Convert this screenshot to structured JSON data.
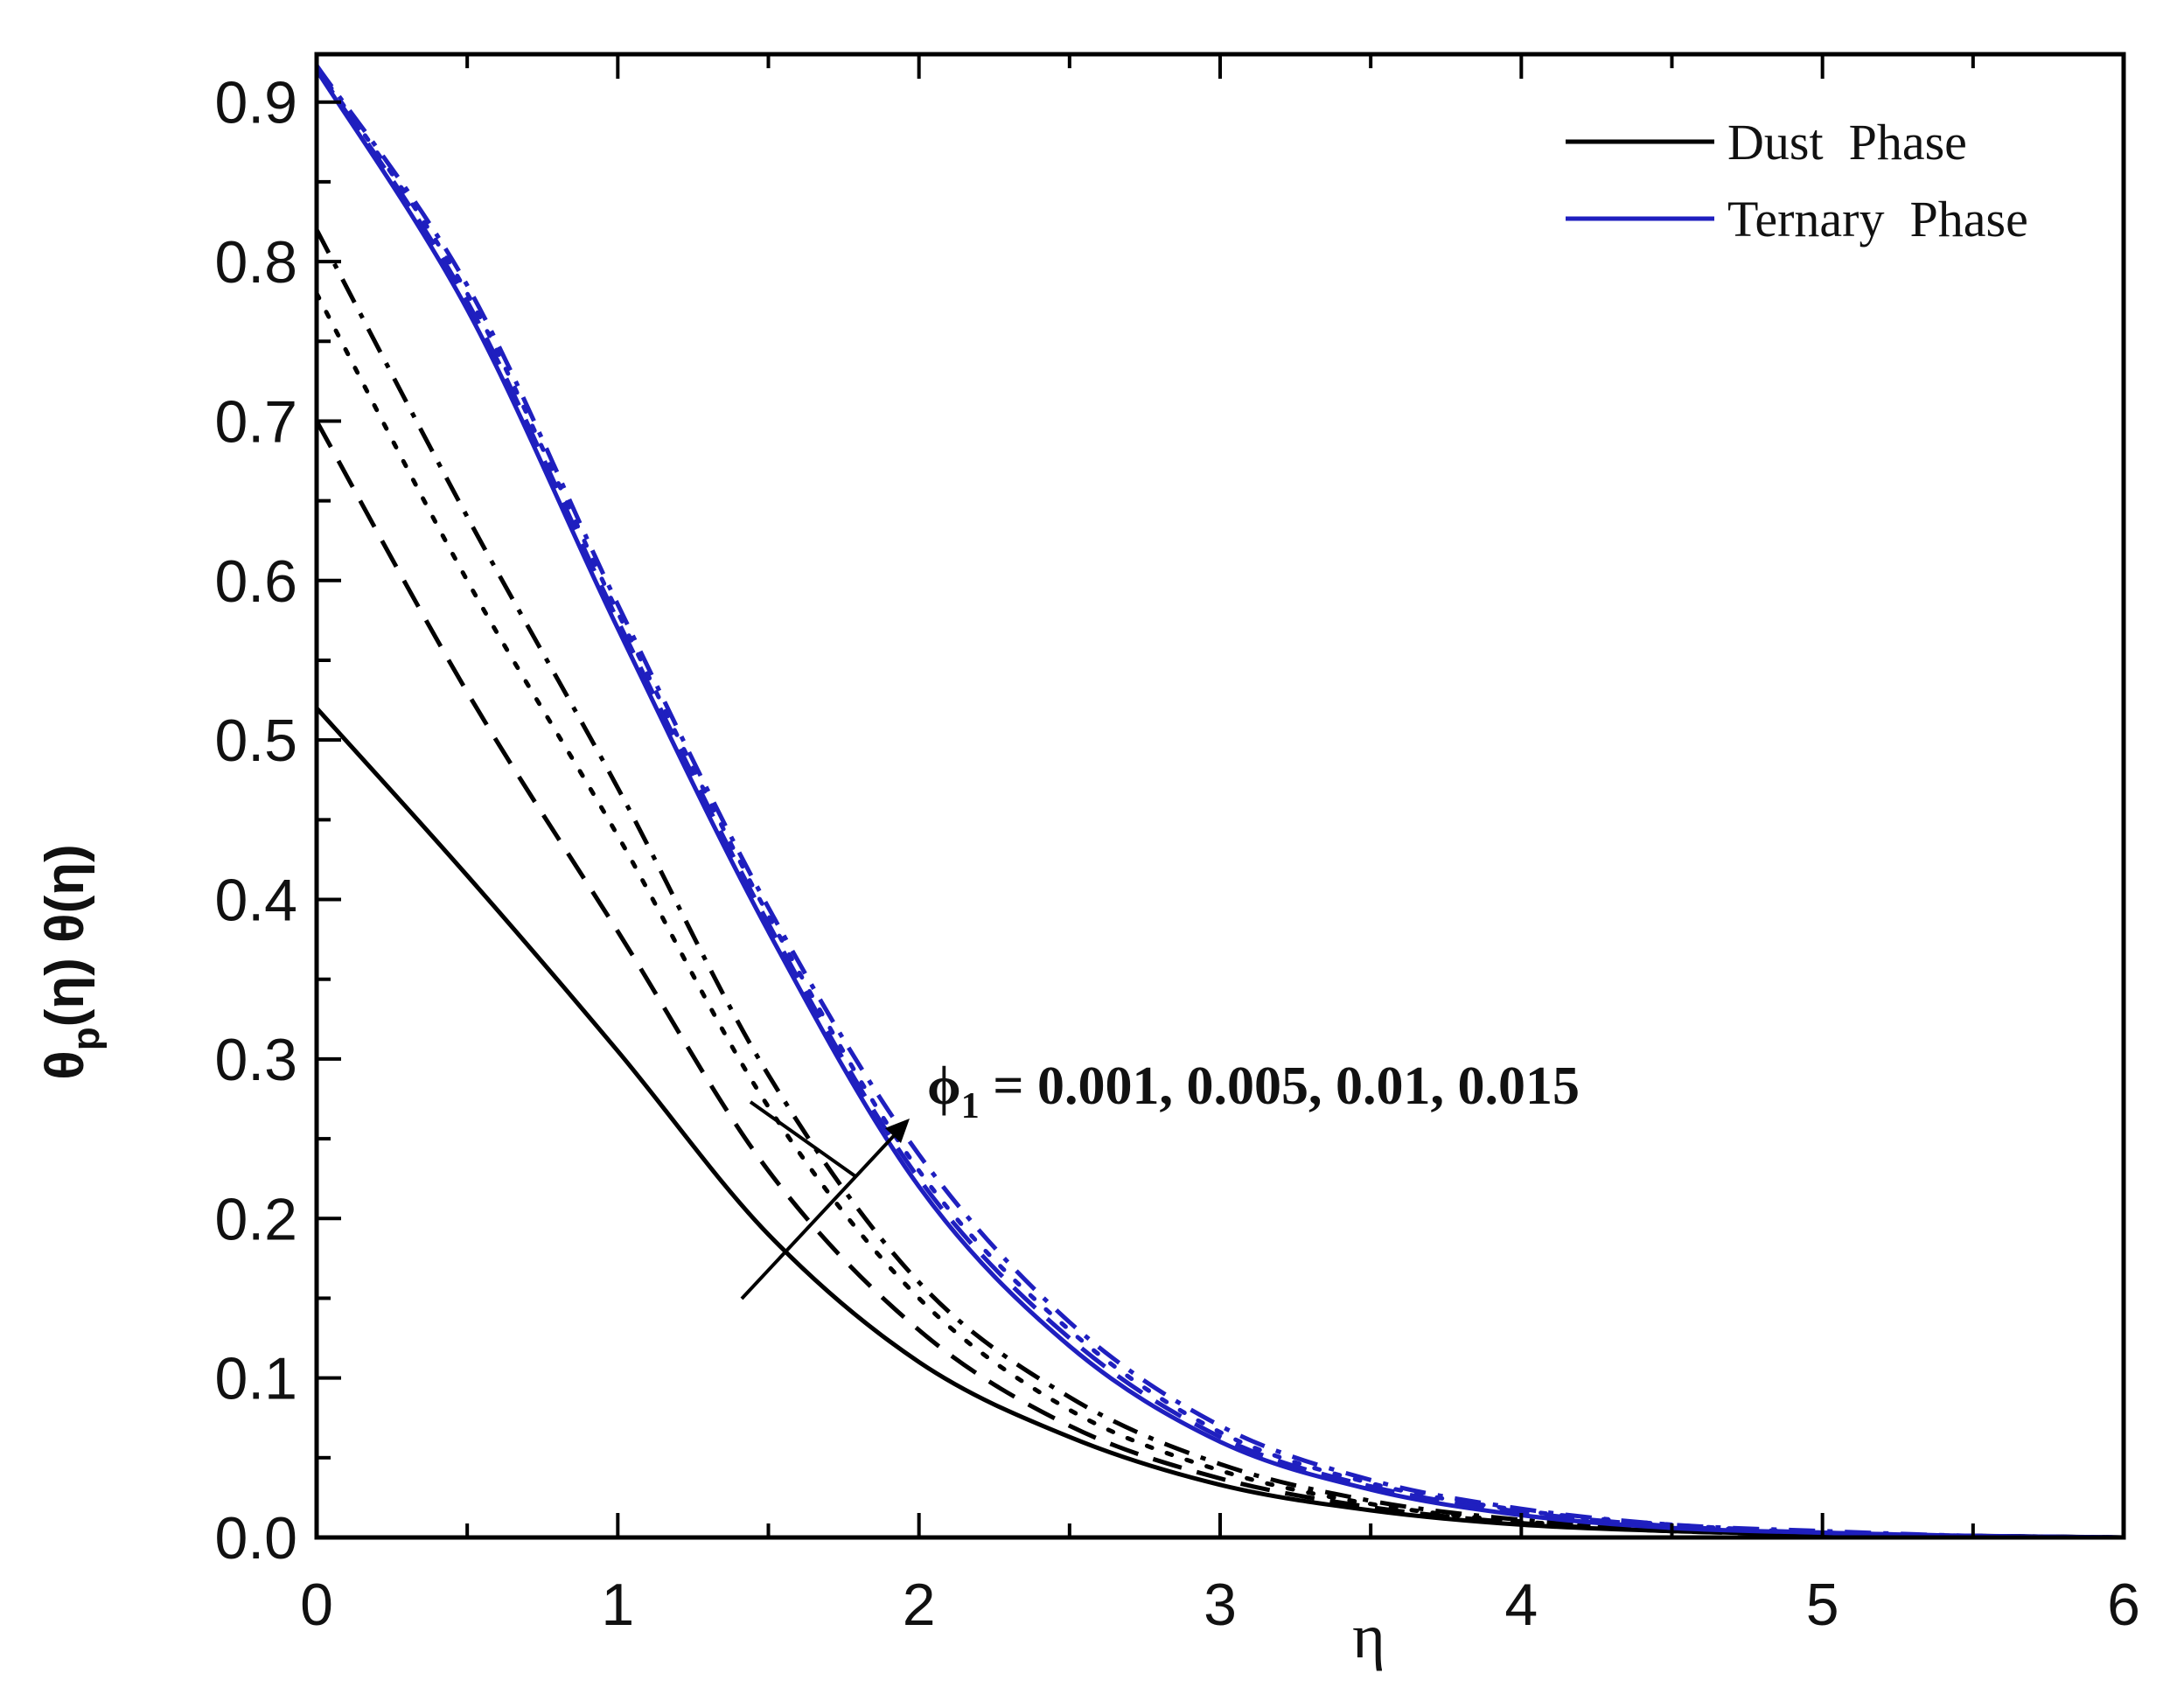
{
  "chart_data": {
    "type": "line",
    "xlabel": "η",
    "ylabel_parts": [
      "θ",
      "p",
      "(η) θ(η)"
    ],
    "xlim": [
      0,
      6
    ],
    "ylim": [
      0,
      0.93
    ],
    "xticks": [
      0,
      1,
      2,
      3,
      4,
      5,
      6
    ],
    "yticks": [
      0.0,
      0.1,
      0.2,
      0.3,
      0.4,
      0.5,
      0.6,
      0.7,
      0.8,
      0.9
    ],
    "ytick_labels": [
      "0.0",
      "0.1",
      "0.2",
      "0.3",
      "0.4",
      "0.5",
      "0.6",
      "0.7",
      "0.8",
      "0.9"
    ],
    "grid": false,
    "legend_position": "top-right",
    "legend": [
      {
        "label": "Dust  Phase",
        "color": "#000000"
      },
      {
        "label": "Ternary  Phase",
        "color": "#1f1fbf"
      }
    ],
    "annotation": {
      "symbol": "ϕ",
      "subscript": "1",
      "text": " = 0.001, 0.005, 0.01, 0.015"
    },
    "x": [
      0,
      0.5,
      1,
      1.5,
      2,
      2.5,
      3,
      3.5,
      4,
      4.5,
      5,
      5.5,
      6
    ],
    "series": [
      {
        "phase": "dust",
        "dash": "solid",
        "color": "#000000",
        "values": [
          0.52,
          0.415,
          0.305,
          0.19,
          0.11,
          0.063,
          0.033,
          0.017,
          0.008,
          0.004,
          0.002,
          0.001,
          0.0
        ]
      },
      {
        "phase": "dust",
        "dash": "dashed",
        "color": "#000000",
        "values": [
          0.7,
          0.53,
          0.38,
          0.23,
          0.13,
          0.07,
          0.037,
          0.019,
          0.009,
          0.004,
          0.002,
          0.001,
          0.0
        ]
      },
      {
        "phase": "dust",
        "dash": "dotted",
        "color": "#000000",
        "values": [
          0.78,
          0.6,
          0.44,
          0.27,
          0.15,
          0.08,
          0.042,
          0.021,
          0.01,
          0.005,
          0.002,
          0.001,
          0.0
        ]
      },
      {
        "phase": "dust",
        "dash": "dashdot",
        "color": "#000000",
        "values": [
          0.82,
          0.64,
          0.47,
          0.29,
          0.16,
          0.088,
          0.046,
          0.023,
          0.011,
          0.005,
          0.002,
          0.001,
          0.0
        ]
      },
      {
        "phase": "ternary",
        "dash": "solid",
        "color": "#1f1fbf",
        "values": [
          0.92,
          0.77,
          0.57,
          0.38,
          0.22,
          0.12,
          0.06,
          0.03,
          0.014,
          0.006,
          0.003,
          0.001,
          0.0
        ]
      },
      {
        "phase": "ternary",
        "dash": "dashed",
        "color": "#1f1fbf",
        "values": [
          0.921,
          0.775,
          0.575,
          0.385,
          0.225,
          0.125,
          0.063,
          0.032,
          0.016,
          0.007,
          0.003,
          0.001,
          0.0
        ]
      },
      {
        "phase": "ternary",
        "dash": "dotted",
        "color": "#1f1fbf",
        "values": [
          0.922,
          0.78,
          0.58,
          0.39,
          0.23,
          0.13,
          0.066,
          0.034,
          0.017,
          0.008,
          0.003,
          0.001,
          0.0
        ]
      },
      {
        "phase": "ternary",
        "dash": "dashdot",
        "color": "#1f1fbf",
        "values": [
          0.923,
          0.785,
          0.585,
          0.395,
          0.24,
          0.135,
          0.07,
          0.036,
          0.018,
          0.008,
          0.004,
          0.001,
          0.0
        ]
      }
    ]
  }
}
